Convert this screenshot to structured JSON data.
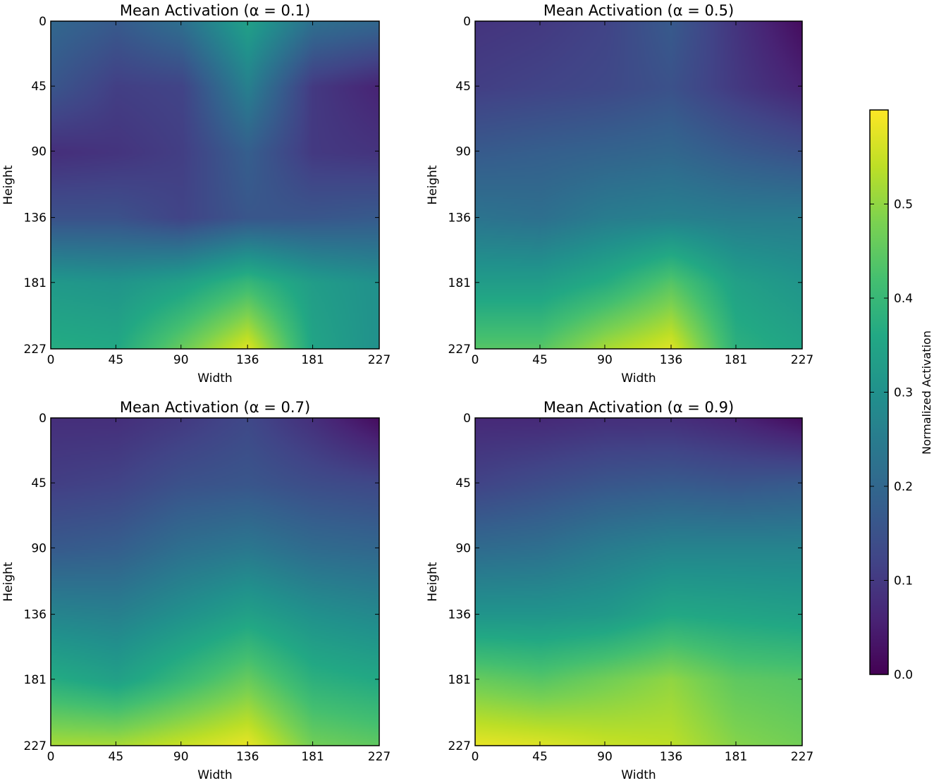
{
  "chart_data": {
    "type": "heatmap",
    "colormap": "viridis",
    "colorbar": {
      "label": "Normalized Activation",
      "range": [
        0.0,
        0.6
      ],
      "ticks": [
        0.0,
        0.1,
        0.2,
        0.3,
        0.4,
        0.5
      ],
      "tick_labels": [
        "0.0",
        "0.1",
        "0.2",
        "0.3",
        "0.4",
        "0.5"
      ]
    },
    "grid": false,
    "shared_axes": {
      "xlabel": "Width",
      "ylabel": "Height",
      "x_range": [
        0,
        227
      ],
      "y_range": [
        0,
        227
      ],
      "y_inverted": true,
      "x_ticks": [
        0,
        45,
        90,
        136,
        181,
        227
      ],
      "y_ticks": [
        0,
        45,
        90,
        136,
        181,
        227
      ]
    },
    "control_grid_note": "approximate activation values sampled on a 6x6 grid at the tick positions (rows = height, cols = width)",
    "panels": [
      {
        "title": "Mean Activation (α = 0.1)",
        "values": [
          [
            0.2,
            0.17,
            0.22,
            0.34,
            0.22,
            0.2
          ],
          [
            0.16,
            0.11,
            0.12,
            0.26,
            0.1,
            0.06
          ],
          [
            0.08,
            0.09,
            0.11,
            0.18,
            0.1,
            0.09
          ],
          [
            0.15,
            0.15,
            0.12,
            0.16,
            0.16,
            0.17
          ],
          [
            0.32,
            0.31,
            0.34,
            0.4,
            0.33,
            0.3
          ],
          [
            0.37,
            0.36,
            0.46,
            0.57,
            0.35,
            0.3
          ]
        ]
      },
      {
        "title": "Mean Activation (α = 0.5)",
        "values": [
          [
            0.09,
            0.1,
            0.12,
            0.17,
            0.09,
            0.02
          ],
          [
            0.11,
            0.12,
            0.13,
            0.15,
            0.1,
            0.06
          ],
          [
            0.17,
            0.18,
            0.19,
            0.2,
            0.17,
            0.15
          ],
          [
            0.23,
            0.22,
            0.25,
            0.26,
            0.25,
            0.25
          ],
          [
            0.33,
            0.33,
            0.37,
            0.44,
            0.34,
            0.31
          ],
          [
            0.44,
            0.44,
            0.52,
            0.57,
            0.38,
            0.35
          ]
        ]
      },
      {
        "title": "Mean Activation (α = 0.7)",
        "values": [
          [
            0.08,
            0.08,
            0.1,
            0.13,
            0.08,
            0.02
          ],
          [
            0.11,
            0.12,
            0.15,
            0.16,
            0.14,
            0.13
          ],
          [
            0.17,
            0.18,
            0.22,
            0.24,
            0.21,
            0.2
          ],
          [
            0.27,
            0.26,
            0.3,
            0.34,
            0.3,
            0.28
          ],
          [
            0.37,
            0.34,
            0.4,
            0.46,
            0.38,
            0.36
          ],
          [
            0.52,
            0.52,
            0.55,
            0.58,
            0.47,
            0.45
          ]
        ]
      },
      {
        "title": "Mean Activation (α = 0.9)",
        "values": [
          [
            0.07,
            0.07,
            0.08,
            0.08,
            0.06,
            0.02
          ],
          [
            0.12,
            0.14,
            0.16,
            0.17,
            0.16,
            0.17
          ],
          [
            0.21,
            0.22,
            0.25,
            0.27,
            0.27,
            0.27
          ],
          [
            0.31,
            0.31,
            0.32,
            0.36,
            0.35,
            0.34
          ],
          [
            0.46,
            0.44,
            0.47,
            0.5,
            0.45,
            0.44
          ],
          [
            0.58,
            0.57,
            0.55,
            0.54,
            0.49,
            0.47
          ]
        ]
      }
    ]
  }
}
